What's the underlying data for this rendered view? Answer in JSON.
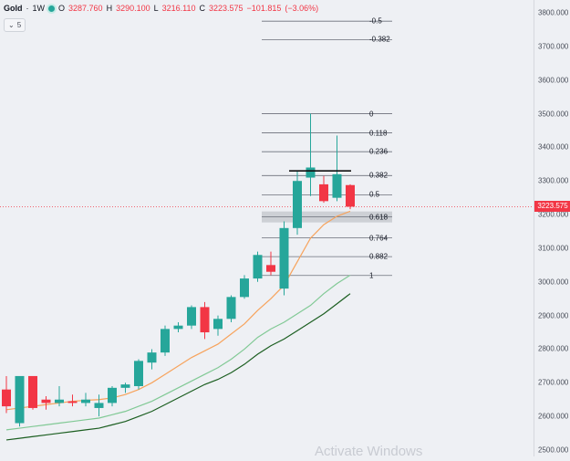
{
  "legend": {
    "symbol": "Gold",
    "interval": "1W",
    "open_label": "O",
    "open": "3287.760",
    "high_label": "H",
    "high": "3290.100",
    "low_label": "L",
    "low": "3216.110",
    "close_label": "C",
    "close": "3223.575",
    "change": "−101.815",
    "change_pct": "(−3.06%)"
  },
  "indicator_toggle": {
    "arrow": "⌄",
    "count": "5"
  },
  "current_price": "3223.575",
  "watermark": "Activate Windows",
  "colors": {
    "up": "#26a69a",
    "down": "#f23645",
    "ema_fast": "#f7a35c",
    "ema_mid": "#81c995",
    "ema_slow": "#1b5e20",
    "fib_line": "#6b6f7a",
    "fib_zone": "#c9ccd2",
    "price_line": "#f23645"
  },
  "chart_data": {
    "type": "candlestick",
    "y_axis_ticks": [
      "3800.000",
      "3700.000",
      "3600.000",
      "3500.000",
      "3400.000",
      "3300.000",
      "3200.000",
      "3100.000",
      "3000.000",
      "2900.000",
      "2800.000",
      "2700.000",
      "2600.000",
      "2500.000"
    ],
    "ylim": [
      2500,
      3800
    ],
    "candles": [
      {
        "o": 2680,
        "h": 2720,
        "l": 2610,
        "c": 2630
      },
      {
        "o": 2580,
        "h": 2720,
        "l": 2570,
        "c": 2720
      },
      {
        "o": 2720,
        "h": 2720,
        "l": 2620,
        "c": 2625
      },
      {
        "o": 2650,
        "h": 2660,
        "l": 2620,
        "c": 2640
      },
      {
        "o": 2640,
        "h": 2690,
        "l": 2630,
        "c": 2650
      },
      {
        "o": 2645,
        "h": 2665,
        "l": 2630,
        "c": 2640
      },
      {
        "o": 2640,
        "h": 2670,
        "l": 2630,
        "c": 2650
      },
      {
        "o": 2625,
        "h": 2665,
        "l": 2600,
        "c": 2640
      },
      {
        "o": 2640,
        "h": 2690,
        "l": 2630,
        "c": 2685
      },
      {
        "o": 2685,
        "h": 2700,
        "l": 2670,
        "c": 2695
      },
      {
        "o": 2690,
        "h": 2770,
        "l": 2680,
        "c": 2765
      },
      {
        "o": 2760,
        "h": 2800,
        "l": 2740,
        "c": 2790
      },
      {
        "o": 2790,
        "h": 2870,
        "l": 2780,
        "c": 2860
      },
      {
        "o": 2860,
        "h": 2880,
        "l": 2850,
        "c": 2870
      },
      {
        "o": 2870,
        "h": 2930,
        "l": 2860,
        "c": 2925
      },
      {
        "o": 2925,
        "h": 2940,
        "l": 2830,
        "c": 2850
      },
      {
        "o": 2860,
        "h": 2900,
        "l": 2840,
        "c": 2890
      },
      {
        "o": 2890,
        "h": 2960,
        "l": 2880,
        "c": 2955
      },
      {
        "o": 2955,
        "h": 3020,
        "l": 2950,
        "c": 3010
      },
      {
        "o": 3010,
        "h": 3090,
        "l": 3000,
        "c": 3080
      },
      {
        "o": 3050,
        "h": 3090,
        "l": 3020,
        "c": 3030
      },
      {
        "o": 2980,
        "h": 3180,
        "l": 2960,
        "c": 3160
      },
      {
        "o": 3160,
        "h": 3330,
        "l": 3140,
        "c": 3300
      },
      {
        "o": 3310,
        "h": 3500,
        "l": 3255,
        "c": 3340
      },
      {
        "o": 3290,
        "h": 3315,
        "l": 3235,
        "c": 3240
      },
      {
        "o": 3250,
        "h": 3435,
        "l": 3240,
        "c": 3320
      },
      {
        "o": 3287.76,
        "h": 3290.1,
        "l": 3216.11,
        "c": 3223.575
      }
    ],
    "ema_fast": [
      2620,
      2625,
      2630,
      2635,
      2640,
      2645,
      2648,
      2650,
      2655,
      2665,
      2680,
      2700,
      2725,
      2750,
      2775,
      2795,
      2815,
      2845,
      2875,
      2915,
      2950,
      2990,
      3060,
      3130,
      3170,
      3195,
      3210
    ],
    "ema_mid": [
      2560,
      2565,
      2570,
      2575,
      2580,
      2585,
      2590,
      2595,
      2605,
      2615,
      2630,
      2645,
      2665,
      2685,
      2705,
      2725,
      2745,
      2770,
      2800,
      2835,
      2860,
      2880,
      2905,
      2930,
      2965,
      2995,
      3020
    ],
    "ema_slow": [
      2530,
      2535,
      2540,
      2545,
      2550,
      2555,
      2560,
      2565,
      2575,
      2585,
      2600,
      2615,
      2635,
      2655,
      2675,
      2695,
      2710,
      2730,
      2755,
      2785,
      2810,
      2830,
      2855,
      2880,
      2905,
      2935,
      2965
    ],
    "fib_levels": [
      {
        "label": "-0.5",
        "price": 3775
      },
      {
        "label": "-0.382",
        "price": 3720
      },
      {
        "label": "0",
        "price": 3500
      },
      {
        "label": "0.118",
        "price": 3443
      },
      {
        "label": "0.236",
        "price": 3387
      },
      {
        "label": "0.382",
        "price": 3316
      },
      {
        "label": "0.5",
        "price": 3259
      },
      {
        "label": "0.618",
        "price": 3193
      },
      {
        "label": "0.764",
        "price": 3131
      },
      {
        "label": "0.882",
        "price": 3075
      },
      {
        "label": "1",
        "price": 3019
      }
    ],
    "resistance_level": 3330
  }
}
